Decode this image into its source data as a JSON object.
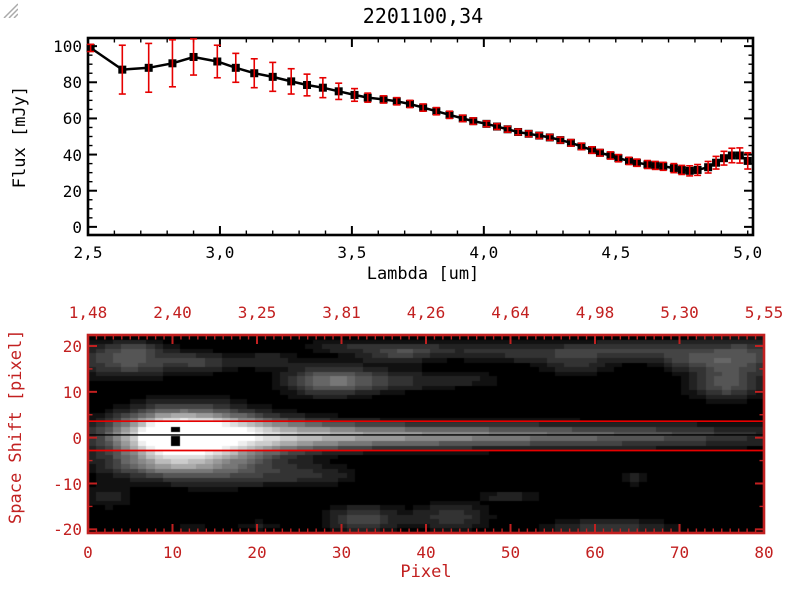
{
  "window": {
    "background": "#ffffff"
  },
  "colors": {
    "plot_black": "#000000",
    "accent_red": "#c22020",
    "error_bar_red": "#e60000",
    "aperture_line_red": "#e60000",
    "grip_gray": "#aaaaaa"
  },
  "resize_grip": {
    "present": true
  },
  "chart_data": [
    {
      "type": "line",
      "title": "2201100,34",
      "xlabel": "Lambda [um]",
      "ylabel": "Flux [mJy]",
      "xlim": [
        2.5,
        5.02
      ],
      "ylim": [
        -4.5,
        104.5
      ],
      "xticks": {
        "values": [
          2.5,
          3.0,
          3.5,
          4.0,
          4.5,
          5.0
        ],
        "labels": [
          "2,5",
          "3,0",
          "3,5",
          "4,0",
          "4,5",
          "5,0"
        ]
      },
      "yticks": {
        "values": [
          0,
          20,
          40,
          60,
          80,
          100
        ],
        "labels": [
          "0",
          "20",
          "40",
          "60",
          "80",
          "100"
        ]
      },
      "x_minor_step": 0.1,
      "y_minor_step": 5,
      "marker": "filled-square",
      "line_color": "#000000",
      "error_color": "#e60000",
      "series": [
        {
          "name": "flux",
          "points_format": [
            "lambda_um",
            "flux_mJy",
            "error_mJy"
          ],
          "points": [
            [
              2.51,
              99,
              2
            ],
            [
              2.63,
              87,
              13.5
            ],
            [
              2.73,
              88,
              13.5
            ],
            [
              2.82,
              90.5,
              13
            ],
            [
              2.9,
              94,
              10
            ],
            [
              2.99,
              91.5,
              9
            ],
            [
              3.06,
              88,
              8
            ],
            [
              3.13,
              85,
              8
            ],
            [
              3.2,
              83,
              8
            ],
            [
              3.27,
              80.5,
              7
            ],
            [
              3.33,
              78.5,
              6
            ],
            [
              3.39,
              77,
              5.5
            ],
            [
              3.45,
              75,
              4.5
            ],
            [
              3.51,
              73,
              3.5
            ],
            [
              3.56,
              71.5,
              2.5
            ],
            [
              3.62,
              70.5,
              2
            ],
            [
              3.67,
              69.5,
              2
            ],
            [
              3.72,
              68,
              2
            ],
            [
              3.77,
              66,
              2
            ],
            [
              3.82,
              64,
              2
            ],
            [
              3.87,
              62,
              2
            ],
            [
              3.92,
              60,
              1.8
            ],
            [
              3.96,
              58.5,
              1.8
            ],
            [
              4.01,
              57,
              1.6
            ],
            [
              4.05,
              55.5,
              1.6
            ],
            [
              4.09,
              54,
              1.6
            ],
            [
              4.13,
              52.5,
              1.6
            ],
            [
              4.17,
              51.5,
              1.6
            ],
            [
              4.21,
              50.5,
              1.6
            ],
            [
              4.25,
              49.5,
              1.6
            ],
            [
              4.29,
              48,
              1.6
            ],
            [
              4.33,
              46.5,
              1.8
            ],
            [
              4.37,
              44.5,
              1.8
            ],
            [
              4.41,
              42.5,
              1.8
            ],
            [
              4.44,
              41,
              1.8
            ],
            [
              4.48,
              39.5,
              2
            ],
            [
              4.51,
              38,
              2
            ],
            [
              4.55,
              36.5,
              2
            ],
            [
              4.58,
              35.5,
              2
            ],
            [
              4.62,
              34.5,
              2.2
            ],
            [
              4.65,
              34,
              2.2
            ],
            [
              4.68,
              33.5,
              2.2
            ],
            [
              4.72,
              32.5,
              2.5
            ],
            [
              4.75,
              31.5,
              2.5
            ],
            [
              4.78,
              31,
              2.8
            ],
            [
              4.81,
              31.5,
              3
            ],
            [
              4.85,
              33,
              3.2
            ],
            [
              4.88,
              35.5,
              3.5
            ],
            [
              4.91,
              38,
              3.8
            ],
            [
              4.94,
              39.5,
              4
            ],
            [
              4.97,
              39.5,
              4.2
            ],
            [
              5.0,
              36.5,
              4.5
            ]
          ]
        }
      ]
    },
    {
      "type": "heatmap",
      "title": "",
      "xlabel": "Pixel",
      "ylabel": "Space Shift [pixel]",
      "axis_color": "#c22020",
      "xlim": [
        0,
        80
      ],
      "ylim": [
        -20.8,
        22.4
      ],
      "xticks": {
        "values": [
          0,
          10,
          20,
          30,
          40,
          50,
          60,
          70,
          80
        ],
        "labels": [
          "0",
          "10",
          "20",
          "30",
          "40",
          "50",
          "60",
          "70",
          "80"
        ]
      },
      "yticks": {
        "values": [
          20,
          10,
          0,
          -10,
          -20
        ],
        "labels": [
          "20",
          "10",
          "0",
          "-10",
          "-20"
        ]
      },
      "x_minor_step": 1,
      "y_minor_step": 5,
      "top_axis_labels": {
        "positions": [
          0,
          10,
          20,
          30,
          40,
          50,
          60,
          70,
          80
        ],
        "labels": [
          "1,48",
          "2,40",
          "3,25",
          "3,81",
          "4,26",
          "4,64",
          "4,98",
          "5,30",
          "5,55"
        ]
      },
      "overlays": {
        "aperture_lines_y": [
          3.6,
          -2.8
        ],
        "aperture_color": "#e60000",
        "center_line_y": 0.6,
        "center_color": "#000000"
      },
      "image_features": {
        "band": {
          "y_center": 0.6,
          "sigma_base": 1.7,
          "sigma_core": 3.1,
          "core_x": 11,
          "core_sigma_x": 10,
          "profile_x": [
            0,
            2,
            5,
            8,
            10,
            14,
            18,
            25,
            35,
            45,
            55,
            62,
            70,
            76,
            80
          ],
          "profile_amp": [
            0.15,
            0.3,
            0.58,
            0.95,
            1,
            1,
            0.9,
            0.76,
            0.62,
            0.54,
            0.44,
            0.38,
            0.3,
            0.22,
            0.16
          ]
        },
        "halo": {
          "x": 11,
          "y": 0.6,
          "sx": 5,
          "sy": 4.2,
          "amp": 0.5
        },
        "blobs_format": [
          "x",
          "y",
          "sigma_x",
          "sigma_y",
          "amplitude"
        ],
        "blobs": [
          [
            4,
            17,
            4,
            2.5,
            0.33
          ],
          [
            13,
            16.5,
            3,
            1.5,
            0.22
          ],
          [
            21,
            17,
            2.5,
            1.2,
            0.15
          ],
          [
            28.5,
            12.5,
            3.5,
            2.2,
            0.42
          ],
          [
            36,
            12.5,
            4,
            1.5,
            0.2
          ],
          [
            45,
            12.8,
            3,
            1.2,
            0.12
          ],
          [
            36.5,
            18.5,
            3,
            1.5,
            0.25
          ],
          [
            48,
            19,
            4,
            1.5,
            0.18
          ],
          [
            57,
            18.5,
            4,
            1.5,
            0.2
          ],
          [
            66,
            19.3,
            5,
            1.5,
            0.22
          ],
          [
            72,
            17,
            3,
            1.5,
            0.18
          ],
          [
            78,
            18,
            4,
            2.5,
            0.3
          ],
          [
            76,
            12,
            3,
            2.5,
            0.32
          ],
          [
            58,
            15.5,
            3,
            1.5,
            0.13
          ],
          [
            8,
            -5.5,
            5,
            2,
            0.28
          ],
          [
            16,
            -6.5,
            6,
            2.5,
            0.25
          ],
          [
            26,
            -8,
            4,
            1.5,
            0.15
          ],
          [
            2,
            -12.5,
            2,
            2,
            0.12
          ],
          [
            32.5,
            -17.5,
            3,
            1.8,
            0.3
          ],
          [
            43,
            -17,
            3,
            2,
            0.22
          ],
          [
            50,
            -12.5,
            2.5,
            1,
            0.15
          ],
          [
            62,
            -19.5,
            5,
            1.5,
            0.22
          ],
          [
            65,
            -8.7,
            1.5,
            1,
            0.13
          ],
          [
            20,
            -19,
            2,
            1,
            0.1
          ],
          [
            12,
            -19.5,
            2,
            1,
            0.1
          ],
          [
            5,
            19.5,
            2,
            1,
            0.12
          ],
          [
            30,
            20,
            3,
            1,
            0.15
          ],
          [
            40,
            19.5,
            3,
            1,
            0.12
          ]
        ],
        "masked_cells_format": [
          "col",
          "row"
        ],
        "masked_cells": [
          [
            10,
            20
          ],
          [
            10,
            22
          ],
          [
            10,
            23
          ]
        ]
      }
    }
  ]
}
